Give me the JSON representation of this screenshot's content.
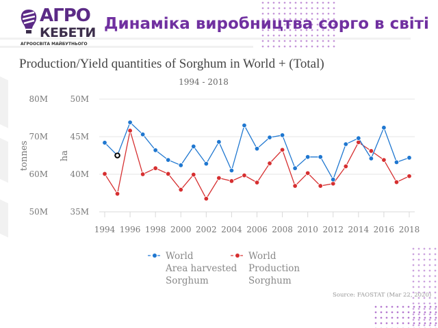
{
  "header": {
    "logo_line1": "АГРО",
    "logo_line2": "КЕБЕТИ",
    "logo_tagline": "АГРООСВІТА МАЙБУТНЬОГО",
    "slide_title": "Динаміка виробництва сорго в світі"
  },
  "chart_data": {
    "type": "line",
    "title": "Production/Yield quantities of Sorghum in World + (Total)",
    "subtitle": "1994 - 2018",
    "x": [
      1994,
      1995,
      1996,
      1997,
      1998,
      1999,
      2000,
      2001,
      2002,
      2003,
      2004,
      2005,
      2006,
      2007,
      2008,
      2009,
      2010,
      2011,
      2012,
      2013,
      2014,
      2015,
      2016,
      2017,
      2018
    ],
    "x_tick_labels": [
      "1994",
      "1996",
      "1998",
      "2000",
      "2002",
      "2004",
      "2006",
      "2008",
      "2010",
      "2012",
      "2014",
      "2016",
      "2018"
    ],
    "y_axes": [
      {
        "title": "tonnes",
        "range": [
          50,
          80
        ],
        "unit": "M",
        "tick_labels": [
          "80M",
          "70M",
          "60M",
          "50M"
        ]
      },
      {
        "title": "ha",
        "range": [
          35,
          50
        ],
        "unit": "M",
        "tick_labels": [
          "50M",
          "45M",
          "40M",
          "35M"
        ]
      }
    ],
    "series": [
      {
        "name": "World Area harvested Sorghum",
        "legend_lines": [
          "World",
          "Area harvested",
          "Sorghum"
        ],
        "axis": "ha",
        "color": "#1f77d0",
        "values": [
          44.2,
          42.5,
          46.9,
          45.3,
          43.2,
          41.9,
          41.2,
          43.7,
          41.4,
          44.3,
          40.5,
          46.5,
          43.4,
          44.9,
          45.2,
          40.8,
          42.3,
          42.3,
          39.3,
          44.0,
          44.8,
          42.1,
          46.2,
          41.6,
          42.2
        ],
        "highlighted_index": 1
      },
      {
        "name": "World Production Sorghum",
        "legend_lines": [
          "World",
          "Production",
          "Sorghum"
        ],
        "axis": "tonnes",
        "color": "#d62f30",
        "values": [
          60.1,
          54.8,
          71.6,
          60.0,
          61.6,
          60.1,
          55.9,
          59.9,
          53.5,
          59.0,
          58.2,
          59.7,
          57.8,
          62.9,
          66.5,
          56.9,
          60.3,
          56.9,
          57.5,
          62.1,
          68.5,
          66.2,
          63.8,
          57.9,
          59.5
        ]
      }
    ],
    "legend_placement": "bottom-left",
    "grid": true,
    "source": "Source: FAOSTAT (Mar 22, 2020)"
  }
}
